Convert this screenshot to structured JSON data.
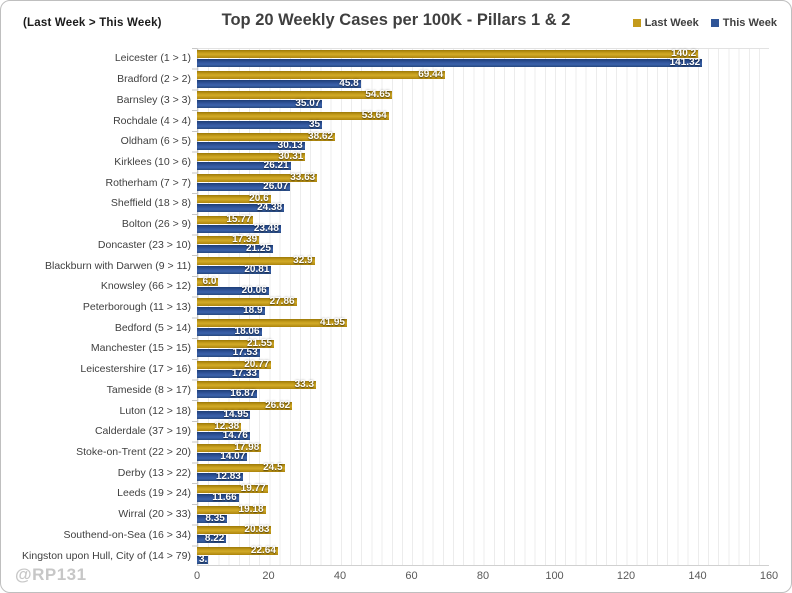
{
  "header": {
    "corner_note": "(Last Week > This Week)"
  },
  "footer": {
    "watermark": "@RP131"
  },
  "chart_data": {
    "type": "bar",
    "orientation": "horizontal",
    "title": "Top 20 Weekly Cases per 100K - Pillars 1 & 2",
    "legend_position": "top-right",
    "grid": "faint vertical minor gridlines",
    "x_axis": {
      "min": 0,
      "max": 160,
      "ticks": [
        0,
        20,
        40,
        60,
        80,
        100,
        120,
        140,
        160
      ]
    },
    "categories": [
      "Leicester (1 > 1)",
      "Bradford (2 > 2)",
      "Barnsley (3 > 3)",
      "Rochdale (4 > 4)",
      "Oldham (6 > 5)",
      "Kirklees (10 > 6)",
      "Rotherham (7 > 7)",
      "Sheffield (18 > 8)",
      "Bolton (26 > 9)",
      "Doncaster (23 > 10)",
      "Blackburn with Darwen (9 > 11)",
      "Knowsley (66 > 12)",
      "Peterborough (11 > 13)",
      "Bedford (5 > 14)",
      "Manchester (15 > 15)",
      "Leicestershire (17 > 16)",
      "Tameside (8 > 17)",
      "Luton (12 > 18)",
      "Calderdale (37 > 19)",
      "Stoke-on-Trent (22 > 20)",
      "Derby (13 > 22)",
      "Leeds (19 > 24)",
      "Wirral (20 > 33)",
      "Southend-on-Sea (16 > 34)",
      "Kingston upon Hull, City of (14 > 79)"
    ],
    "series": [
      {
        "name": "Last Week",
        "color": "#C49A1B",
        "values": [
          140.2,
          69.44,
          54.65,
          53.64,
          38.62,
          30.31,
          33.63,
          20.6,
          15.77,
          17.39,
          32.9,
          6.0,
          27.86,
          41.95,
          21.55,
          20.77,
          33.3,
          26.62,
          12.38,
          17.98,
          24.5,
          19.77,
          19.18,
          20.83,
          22.64
        ],
        "labels": [
          "140.2",
          "69.44",
          "54.65",
          "53.64",
          "38.62",
          "30.31",
          "33.63",
          "20.6",
          "15.77",
          "17.39",
          "32.9",
          "6.0",
          "27.86",
          "41.95",
          "21.55",
          "20.77",
          "33.3",
          "26.62",
          "12.38",
          "17.98",
          "24.5",
          "19.77",
          "19.18",
          "20.83",
          "22.64"
        ]
      },
      {
        "name": "This Week",
        "color": "#2F5597",
        "values": [
          141.32,
          45.8,
          35.07,
          35,
          30.13,
          26.21,
          26.07,
          24.38,
          23.48,
          21.25,
          20.81,
          20.06,
          18.9,
          18.06,
          17.53,
          17.33,
          16.87,
          14.95,
          14.76,
          14.07,
          12.83,
          11.66,
          8.35,
          8.22,
          3.1
        ],
        "labels": [
          "141.32",
          "45.8",
          "35.07",
          "35",
          "30.13",
          "26.21",
          "26.07",
          "24.38",
          "23.48",
          "21.25",
          "20.81",
          "20.06",
          "18.9",
          "18.06",
          "17.53",
          "17.33",
          "16.87",
          "14.95",
          "14.76",
          "14.07",
          "12.83",
          "11.66",
          "8.35",
          "8.22",
          "3."
        ]
      }
    ]
  }
}
